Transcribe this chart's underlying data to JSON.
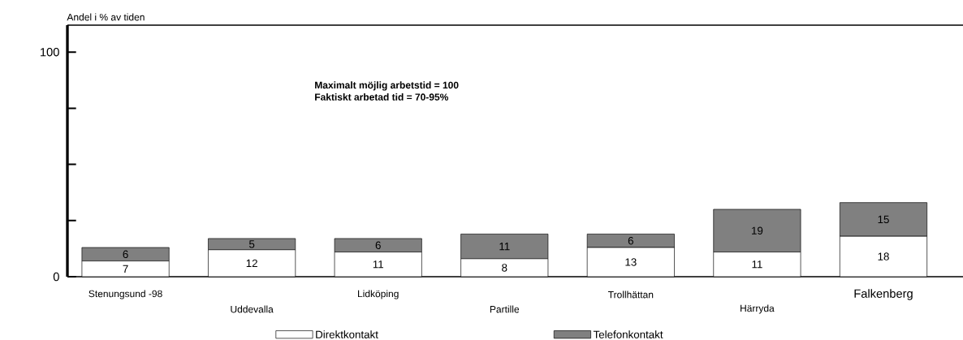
{
  "chart_data": {
    "type": "bar",
    "stacked": true,
    "ylabel": "Andel i % av tiden",
    "categories": [
      "Stenungsund -98",
      "Uddevalla",
      "Lidköping",
      "Partille",
      "Trollhättan",
      "Härryda",
      "Falkenberg"
    ],
    "series": [
      {
        "name": "Direktkontakt",
        "color": "#ffffff",
        "values": [
          7,
          12,
          11,
          8,
          13,
          11,
          18
        ]
      },
      {
        "name": "Telefonkontakt",
        "color": "#808080",
        "values": [
          6,
          5,
          6,
          11,
          6,
          19,
          15
        ]
      }
    ],
    "ylim": [
      0,
      112
    ],
    "yticks": [
      0,
      {
        "value": 25,
        "label": null
      },
      {
        "value": 50,
        "label": null
      },
      {
        "value": 75,
        "label": null
      },
      100
    ],
    "data_labels": true,
    "legend": "bottom",
    "grid": false,
    "annotations": [
      "Maximalt möjlig arbetstid = 100",
      "Faktiskt arbetad tid = 70-95%"
    ]
  }
}
